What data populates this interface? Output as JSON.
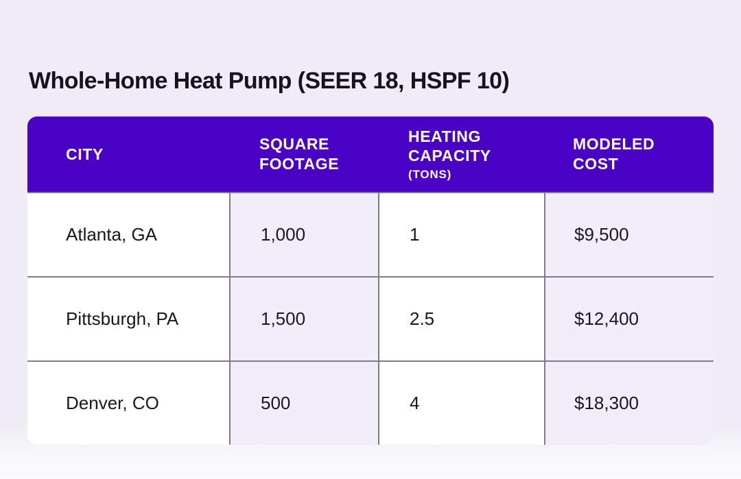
{
  "page": {
    "title": "Whole-Home Heat Pump (SEER 18, HSPF 10)"
  },
  "table": {
    "headers": [
      {
        "label": "CITY",
        "sub": ""
      },
      {
        "label": "SQUARE FOOTAGE",
        "sub": ""
      },
      {
        "label": "HEATING CAPACITY",
        "sub": "(TONS)"
      },
      {
        "label": "MODELED COST",
        "sub": ""
      }
    ],
    "rows": [
      {
        "city": "Atlanta, GA",
        "square_footage": "1,000",
        "heating_capacity_tons": "1",
        "modeled_cost": "$9,500"
      },
      {
        "city": "Pittsburgh, PA",
        "square_footage": "1,500",
        "heating_capacity_tons": "2.5",
        "modeled_cost": "$12,400"
      },
      {
        "city": "Denver, CO",
        "square_footage": "500",
        "heating_capacity_tons": "4",
        "modeled_cost": "$18,300"
      }
    ]
  },
  "colors": {
    "page_background": "#efecf6",
    "header_background": "#4a03c4",
    "header_text": "#ffffff",
    "cell_white": "#ffffff",
    "cell_lavender": "#f1eefa",
    "divider": "#7f7b88",
    "body_text": "#1b1523",
    "title_text": "#17121f"
  },
  "chart_data": {
    "type": "table",
    "title": "Whole-Home Heat Pump (SEER 18, HSPF 10)",
    "columns": [
      "CITY",
      "SQUARE FOOTAGE",
      "HEATING CAPACITY (TONS)",
      "MODELED COST"
    ],
    "rows": [
      [
        "Atlanta, GA",
        "1,000",
        "1",
        "$9,500"
      ],
      [
        "Pittsburgh, PA",
        "1,500",
        "2.5",
        "$12,400"
      ],
      [
        "Denver, CO",
        "500",
        "4",
        "$18,300"
      ]
    ],
    "square_footage_values": [
      1000,
      1500,
      500
    ],
    "heating_capacity_tons_values": [
      1,
      2.5,
      4
    ],
    "modeled_cost_usd_values": [
      9500,
      12400,
      18300
    ]
  }
}
